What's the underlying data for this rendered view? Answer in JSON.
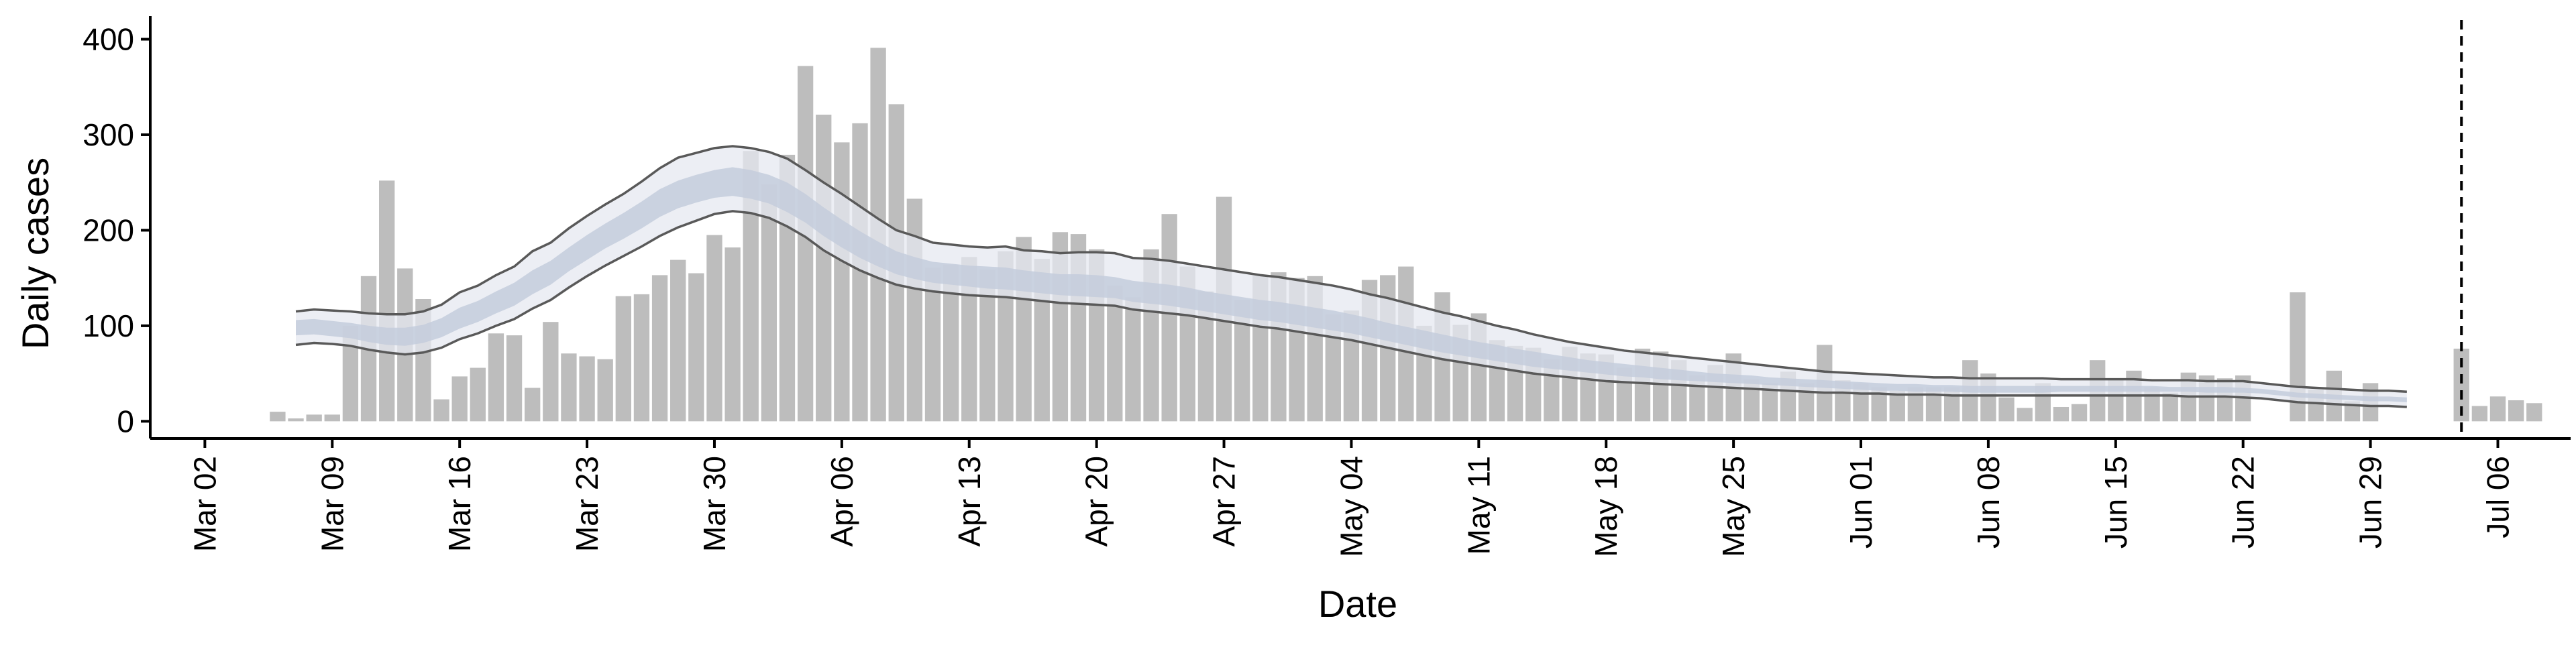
{
  "chart_data": {
    "type": "bar",
    "xlabel": "Date",
    "ylabel": "Daily cases",
    "year": 2020,
    "x_range": [
      "2020-02-28",
      "2020-07-10"
    ],
    "ylim": [
      -18,
      420
    ],
    "y_ticks": [
      0,
      100,
      200,
      300,
      400
    ],
    "y_tick_labels": [
      "0",
      "100",
      "200",
      "300",
      "400"
    ],
    "x_ticks": [
      "2020-03-02",
      "2020-03-09",
      "2020-03-16",
      "2020-03-23",
      "2020-03-30",
      "2020-04-06",
      "2020-04-13",
      "2020-04-20",
      "2020-04-27",
      "2020-05-04",
      "2020-05-11",
      "2020-05-18",
      "2020-05-25",
      "2020-06-01",
      "2020-06-08",
      "2020-06-15",
      "2020-06-22",
      "2020-06-29",
      "2020-07-06"
    ],
    "x_tick_labels": [
      "Mar 02",
      "Mar 09",
      "Mar 16",
      "Mar 23",
      "Mar 30",
      "Apr 06",
      "Apr 13",
      "Apr 20",
      "Apr 27",
      "May 04",
      "May 11",
      "May 18",
      "May 25",
      "Jun 01",
      "Jun 08",
      "Jun 15",
      "Jun 22",
      "Jun 29",
      "Jul 06"
    ],
    "bar_color": "#bdbdbd",
    "band_outer_color": "#e6e8f0",
    "band_inner_color": "#c4ccdc",
    "line_color": "#595959",
    "vline_date": "2020-07-04",
    "grid": false,
    "legend": false,
    "cases_start": "2020-03-06",
    "cases": [
      10,
      3,
      7,
      7,
      100,
      152,
      252,
      160,
      128,
      23,
      47,
      56,
      92,
      90,
      35,
      104,
      71,
      68,
      65,
      131,
      133,
      153,
      169,
      155,
      195,
      182,
      283,
      248,
      279,
      372,
      321,
      292,
      312,
      391,
      332,
      233,
      161,
      164,
      172,
      159,
      178,
      193,
      170,
      198,
      196,
      180,
      142,
      130,
      180,
      217,
      162,
      136,
      235,
      127,
      152,
      156,
      150,
      152,
      112,
      116,
      148,
      153,
      162,
      100,
      135,
      101,
      113,
      85,
      79,
      77,
      65,
      78,
      71,
      70,
      56,
      76,
      73,
      64,
      48,
      59,
      71,
      44,
      40,
      52,
      40,
      80,
      43,
      40,
      36,
      32,
      36,
      36,
      36,
      64,
      50,
      25,
      14,
      40,
      15,
      18,
      64,
      44,
      53,
      36,
      30,
      51,
      48,
      45,
      48,
      0,
      0,
      135,
      33,
      53,
      21,
      40,
      0,
      0,
      0,
      0,
      76,
      16,
      26,
      22,
      19
    ],
    "estimate_start": "2020-03-07",
    "upper_90": [
      115,
      117,
      116,
      115,
      113,
      112,
      112,
      115,
      122,
      135,
      142,
      153,
      162,
      178,
      187,
      202,
      215,
      227,
      238,
      251,
      265,
      276,
      281,
      286,
      288,
      286,
      282,
      275,
      263,
      250,
      238,
      225,
      212,
      200,
      194,
      187,
      185,
      183,
      182,
      183,
      179,
      178,
      176,
      177,
      177,
      176,
      171,
      170,
      168,
      165,
      162,
      159,
      156,
      153,
      151,
      148,
      145,
      142,
      138,
      133,
      129,
      124,
      119,
      114,
      110,
      105,
      100,
      96,
      91,
      87,
      83,
      80,
      77,
      74,
      72,
      70,
      68,
      66,
      64,
      62,
      60,
      58,
      56,
      54,
      52,
      51,
      50,
      49,
      48,
      47,
      46,
      46,
      45,
      45,
      45,
      45,
      45,
      44,
      44,
      44,
      44,
      44,
      43,
      43,
      43,
      42,
      42,
      42,
      40,
      38,
      36,
      35,
      34,
      33,
      32,
      32,
      31
    ],
    "upper_50": [
      106,
      107,
      105,
      103,
      100,
      98,
      98,
      101,
      108,
      119,
      126,
      136,
      145,
      158,
      168,
      182,
      195,
      207,
      218,
      230,
      243,
      252,
      258,
      263,
      266,
      263,
      258,
      250,
      238,
      224,
      211,
      199,
      188,
      178,
      172,
      167,
      165,
      163,
      162,
      161,
      158,
      156,
      154,
      154,
      153,
      151,
      147,
      145,
      143,
      140,
      136,
      133,
      130,
      127,
      125,
      122,
      119,
      116,
      112,
      108,
      103,
      99,
      95,
      91,
      87,
      83,
      80,
      76,
      73,
      70,
      67,
      64,
      62,
      60,
      58,
      56,
      54,
      52,
      50,
      49,
      48,
      46,
      45,
      44,
      43,
      42,
      41,
      40,
      39,
      39,
      38,
      38,
      37,
      37,
      37,
      37,
      37,
      37,
      37,
      37,
      37,
      37,
      37,
      36,
      36,
      36,
      36,
      35,
      34,
      32,
      30,
      29,
      28,
      27,
      26,
      26,
      25
    ],
    "lower_50": [
      90,
      91,
      89,
      87,
      83,
      80,
      79,
      82,
      88,
      97,
      104,
      113,
      121,
      133,
      143,
      157,
      169,
      181,
      191,
      202,
      214,
      223,
      229,
      234,
      236,
      233,
      228,
      219,
      208,
      194,
      182,
      171,
      162,
      154,
      149,
      145,
      143,
      141,
      139,
      138,
      136,
      134,
      132,
      131,
      130,
      129,
      125,
      123,
      121,
      118,
      115,
      112,
      109,
      106,
      104,
      101,
      98,
      95,
      92,
      88,
      84,
      80,
      76,
      72,
      69,
      66,
      63,
      60,
      57,
      55,
      53,
      51,
      49,
      47,
      46,
      44,
      43,
      42,
      41,
      40,
      39,
      38,
      37,
      36,
      35,
      34,
      33,
      32,
      32,
      31,
      31,
      31,
      30,
      30,
      30,
      30,
      30,
      31,
      31,
      31,
      31,
      31,
      31,
      31,
      31,
      30,
      30,
      30,
      29,
      27,
      25,
      24,
      23,
      22,
      21,
      21,
      20
    ],
    "lower_90": [
      80,
      82,
      81,
      79,
      75,
      72,
      70,
      72,
      77,
      86,
      92,
      100,
      107,
      118,
      127,
      140,
      152,
      163,
      173,
      183,
      194,
      203,
      210,
      217,
      220,
      218,
      213,
      204,
      193,
      179,
      168,
      158,
      150,
      143,
      139,
      136,
      134,
      132,
      131,
      130,
      128,
      126,
      124,
      123,
      122,
      121,
      117,
      115,
      113,
      111,
      108,
      105,
      102,
      99,
      97,
      94,
      91,
      88,
      85,
      81,
      77,
      73,
      69,
      65,
      62,
      59,
      56,
      53,
      50,
      48,
      46,
      44,
      42,
      41,
      40,
      39,
      38,
      37,
      36,
      35,
      34,
      33,
      32,
      31,
      30,
      30,
      29,
      29,
      28,
      28,
      28,
      27,
      27,
      27,
      27,
      27,
      27,
      27,
      27,
      27,
      27,
      27,
      27,
      27,
      26,
      26,
      26,
      25,
      24,
      22,
      20,
      19,
      18,
      17,
      16,
      16,
      15
    ]
  }
}
